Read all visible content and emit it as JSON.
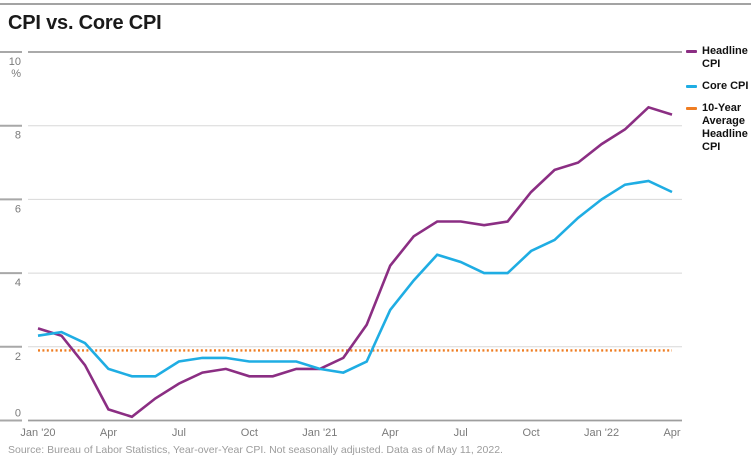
{
  "page": {
    "title": "CPI vs. Core CPI",
    "source_note": "Source: Bureau of Labor Statistics, Year-over-Year CPI. Not seasonally adjusted. Data as of May 11, 2022."
  },
  "legend": {
    "position": "right",
    "items": [
      {
        "id": "headline-cpi",
        "label": "Headline CPI",
        "color": "#8b2e83"
      },
      {
        "id": "core-cpi",
        "label": "Core CPI",
        "color": "#1fade3"
      },
      {
        "id": "ten-year-average-headline-cpi",
        "label": "10-Year Average Headline CPI",
        "color": "#ef7d22"
      }
    ]
  },
  "chart_data": {
    "type": "line",
    "title": "CPI vs. Core CPI",
    "ylabel": "%",
    "ylim": [
      0,
      10
    ],
    "yticks": [
      0,
      2,
      4,
      6,
      8,
      10
    ],
    "grid": "horizontal",
    "legend_position": "right",
    "x": [
      "Jan '20",
      "Feb '20",
      "Mar '20",
      "Apr '20",
      "May '20",
      "Jun '20",
      "Jul '20",
      "Aug '20",
      "Sep '20",
      "Oct '20",
      "Nov '20",
      "Dec '20",
      "Jan '21",
      "Feb '21",
      "Mar '21",
      "Apr '21",
      "May '21",
      "Jun '21",
      "Jul '21",
      "Aug '21",
      "Sep '21",
      "Oct '21",
      "Nov '21",
      "Dec '21",
      "Jan '22",
      "Feb '22",
      "Mar '22",
      "Apr '22"
    ],
    "xtick_labels": [
      "Jan '20",
      "Apr",
      "Jul",
      "Oct",
      "Jan '21",
      "Apr",
      "Jul",
      "Oct",
      "Jan '22",
      "Apr"
    ],
    "xtick_month_indices": [
      0,
      3,
      6,
      9,
      12,
      15,
      18,
      21,
      24,
      27
    ],
    "series": [
      {
        "name": "Headline CPI",
        "color": "#8b2e83",
        "line_style": "solid",
        "values": [
          2.5,
          2.3,
          1.5,
          0.3,
          0.1,
          0.6,
          1.0,
          1.3,
          1.4,
          1.2,
          1.2,
          1.4,
          1.4,
          1.7,
          2.6,
          4.2,
          5.0,
          5.4,
          5.4,
          5.3,
          5.4,
          6.2,
          6.8,
          7.0,
          7.5,
          7.9,
          8.5,
          8.3
        ]
      },
      {
        "name": "Core CPI",
        "color": "#1fade3",
        "line_style": "solid",
        "values": [
          2.3,
          2.4,
          2.1,
          1.4,
          1.2,
          1.2,
          1.6,
          1.7,
          1.7,
          1.6,
          1.6,
          1.6,
          1.4,
          1.3,
          1.6,
          3.0,
          3.8,
          4.5,
          4.3,
          4.0,
          4.0,
          4.6,
          4.9,
          5.5,
          6.0,
          6.4,
          6.5,
          6.2
        ]
      },
      {
        "name": "10-Year Average Headline CPI",
        "color": "#ef7d22",
        "line_style": "dotted",
        "constant_value": 1.9
      }
    ],
    "style_colors": {
      "gridline": "#d8d8d8",
      "plot_border": "#9e9e9e",
      "tick": "#a8a8a8",
      "axis_text": "#7a7a7a",
      "source_text": "#9c9c9c"
    }
  }
}
